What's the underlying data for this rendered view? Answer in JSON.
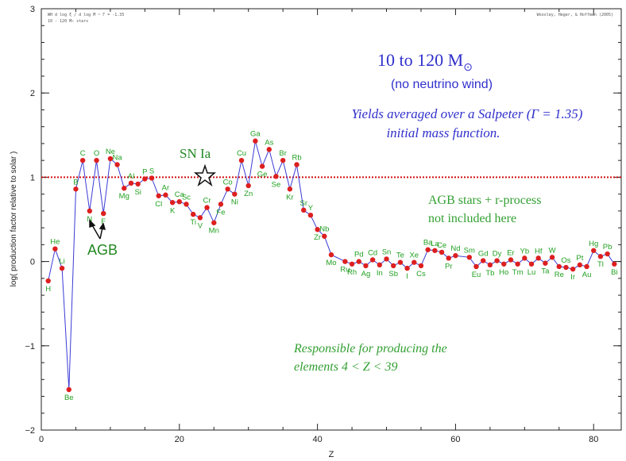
{
  "header": {
    "top_left_line1": "WH d log ξ / d log M ~ Γ = -1.35",
    "top_left_line2": "10 - 120 M☉ stars",
    "top_right": "Woosley, Heger, & Hoffman (2005)"
  },
  "annotations": {
    "mass_range": "10 to 120 M",
    "mass_range_symbol": "⊙",
    "no_wind": "(no neutrino wind)",
    "salpeter_line1": "Yields averaged over a Salpeter (Γ = 1.35)",
    "salpeter_line2": "initial mass function.",
    "agb_rproc_line1": "AGB stars + r-process",
    "agb_rproc_line2": "not included here",
    "responsible_line1": "Responsible for producing the",
    "responsible_line2": "elements 4 < Z < 39",
    "sn_ia": "SN Ia",
    "agb": "AGB"
  },
  "colors": {
    "line": "#3b3bd6",
    "marker": "#dd1f1f",
    "element_label": "#22a022",
    "reference_line": "#d01010",
    "blue_text": "#3030cc",
    "green_text": "#33a033",
    "axis": "#222222"
  },
  "chart_data": {
    "type": "line",
    "xlabel": "Z",
    "ylabel": "log( production factor relative to solar )",
    "xlim": [
      0,
      84
    ],
    "ylim": [
      -2,
      3
    ],
    "x_ticks": [
      "0",
      "20",
      "40",
      "60",
      "80"
    ],
    "y_ticks": [
      "−2",
      "−1",
      "0",
      "1",
      "2",
      "3"
    ],
    "reference_line_y": 1.0,
    "points": [
      {
        "z": 1,
        "y": -0.23,
        "label": "H",
        "pos": "below"
      },
      {
        "z": 2,
        "y": 0.15,
        "label": "He",
        "pos": "above"
      },
      {
        "z": 3,
        "y": -0.08,
        "label": "Li",
        "pos": "above"
      },
      {
        "z": 4,
        "y": -1.52,
        "label": "Be",
        "pos": "below"
      },
      {
        "z": 5,
        "y": 0.86,
        "label": "B",
        "pos": "above"
      },
      {
        "z": 6,
        "y": 1.2,
        "label": "C",
        "pos": "above"
      },
      {
        "z": 7,
        "y": 0.6,
        "label": "N",
        "pos": "below"
      },
      {
        "z": 8,
        "y": 1.2,
        "label": "O",
        "pos": "above"
      },
      {
        "z": 9,
        "y": 0.57,
        "label": "F",
        "pos": "below"
      },
      {
        "z": 10,
        "y": 1.22,
        "label": "Ne",
        "pos": "above"
      },
      {
        "z": 11,
        "y": 1.15,
        "label": "Na",
        "pos": "above"
      },
      {
        "z": 12,
        "y": 0.87,
        "label": "Mg",
        "pos": "below"
      },
      {
        "z": 13,
        "y": 0.93,
        "label": "Al",
        "pos": "above"
      },
      {
        "z": 14,
        "y": 0.92,
        "label": "Si",
        "pos": "below"
      },
      {
        "z": 15,
        "y": 0.98,
        "label": "P",
        "pos": "above"
      },
      {
        "z": 16,
        "y": 0.99,
        "label": "S",
        "pos": "above"
      },
      {
        "z": 17,
        "y": 0.78,
        "label": "Cl",
        "pos": "below"
      },
      {
        "z": 18,
        "y": 0.79,
        "label": "Ar",
        "pos": "above"
      },
      {
        "z": 19,
        "y": 0.7,
        "label": "K",
        "pos": "below"
      },
      {
        "z": 20,
        "y": 0.71,
        "label": "Ca",
        "pos": "above"
      },
      {
        "z": 21,
        "y": 0.68,
        "label": "Sc",
        "pos": "above"
      },
      {
        "z": 22,
        "y": 0.56,
        "label": "Ti",
        "pos": "below"
      },
      {
        "z": 23,
        "y": 0.52,
        "label": "V",
        "pos": "below"
      },
      {
        "z": 24,
        "y": 0.64,
        "label": "Cr",
        "pos": "above"
      },
      {
        "z": 25,
        "y": 0.46,
        "label": "Mn",
        "pos": "below"
      },
      {
        "z": 26,
        "y": 0.68,
        "label": "Fe",
        "pos": "below"
      },
      {
        "z": 27,
        "y": 0.86,
        "label": "Co",
        "pos": "above"
      },
      {
        "z": 28,
        "y": 0.8,
        "label": "Ni",
        "pos": "below"
      },
      {
        "z": 29,
        "y": 1.2,
        "label": "Cu",
        "pos": "above"
      },
      {
        "z": 30,
        "y": 0.9,
        "label": "Zn",
        "pos": "below"
      },
      {
        "z": 31,
        "y": 1.43,
        "label": "Ga",
        "pos": "above"
      },
      {
        "z": 32,
        "y": 1.13,
        "label": "Ge",
        "pos": "below"
      },
      {
        "z": 33,
        "y": 1.33,
        "label": "As",
        "pos": "above"
      },
      {
        "z": 34,
        "y": 1.01,
        "label": "Se",
        "pos": "below"
      },
      {
        "z": 35,
        "y": 1.2,
        "label": "Br",
        "pos": "above"
      },
      {
        "z": 36,
        "y": 0.86,
        "label": "Kr",
        "pos": "below"
      },
      {
        "z": 37,
        "y": 1.15,
        "label": "Rb",
        "pos": "above"
      },
      {
        "z": 38,
        "y": 0.61,
        "label": "Sr",
        "pos": "above"
      },
      {
        "z": 39,
        "y": 0.55,
        "label": "Y",
        "pos": "above"
      },
      {
        "z": 40,
        "y": 0.38,
        "label": "Zr",
        "pos": "below"
      },
      {
        "z": 41,
        "y": 0.3,
        "label": "Nb",
        "pos": "above"
      },
      {
        "z": 42,
        "y": 0.08,
        "label": "Mo",
        "pos": "below"
      },
      {
        "z": 44,
        "y": 0.0,
        "label": "Ru",
        "pos": "below"
      },
      {
        "z": 45,
        "y": -0.03,
        "label": "Rh",
        "pos": "below"
      },
      {
        "z": 46,
        "y": 0.0,
        "label": "Pd",
        "pos": "above"
      },
      {
        "z": 47,
        "y": -0.05,
        "label": "Ag",
        "pos": "below"
      },
      {
        "z": 48,
        "y": 0.02,
        "label": "Cd",
        "pos": "above"
      },
      {
        "z": 49,
        "y": -0.04,
        "label": "In",
        "pos": "below"
      },
      {
        "z": 50,
        "y": 0.03,
        "label": "Sn",
        "pos": "above"
      },
      {
        "z": 51,
        "y": -0.05,
        "label": "Sb",
        "pos": "below"
      },
      {
        "z": 52,
        "y": -0.01,
        "label": "Te",
        "pos": "above"
      },
      {
        "z": 53,
        "y": -0.08,
        "label": "I",
        "pos": "below"
      },
      {
        "z": 54,
        "y": -0.01,
        "label": "Xe",
        "pos": "above"
      },
      {
        "z": 55,
        "y": -0.05,
        "label": "Cs",
        "pos": "below"
      },
      {
        "z": 56,
        "y": 0.14,
        "label": "Ba",
        "pos": "above"
      },
      {
        "z": 57,
        "y": 0.13,
        "label": "La",
        "pos": "above"
      },
      {
        "z": 58,
        "y": 0.11,
        "label": "Ce",
        "pos": "above"
      },
      {
        "z": 59,
        "y": 0.04,
        "label": "Pr",
        "pos": "below"
      },
      {
        "z": 60,
        "y": 0.07,
        "label": "Nd",
        "pos": "above"
      },
      {
        "z": 62,
        "y": 0.05,
        "label": "Sm",
        "pos": "above"
      },
      {
        "z": 63,
        "y": -0.06,
        "label": "Eu",
        "pos": "below"
      },
      {
        "z": 64,
        "y": 0.01,
        "label": "Gd",
        "pos": "above"
      },
      {
        "z": 65,
        "y": -0.04,
        "label": "Tb",
        "pos": "below"
      },
      {
        "z": 66,
        "y": 0.01,
        "label": "Dy",
        "pos": "above"
      },
      {
        "z": 67,
        "y": -0.03,
        "label": "Ho",
        "pos": "below"
      },
      {
        "z": 68,
        "y": 0.02,
        "label": "Er",
        "pos": "above"
      },
      {
        "z": 69,
        "y": -0.03,
        "label": "Tm",
        "pos": "below"
      },
      {
        "z": 70,
        "y": 0.04,
        "label": "Yb",
        "pos": "above"
      },
      {
        "z": 71,
        "y": -0.03,
        "label": "Lu",
        "pos": "below"
      },
      {
        "z": 72,
        "y": 0.04,
        "label": "Hf",
        "pos": "above"
      },
      {
        "z": 73,
        "y": -0.02,
        "label": "Ta",
        "pos": "below"
      },
      {
        "z": 74,
        "y": 0.05,
        "label": "W",
        "pos": "above"
      },
      {
        "z": 75,
        "y": -0.06,
        "label": "Re",
        "pos": "below"
      },
      {
        "z": 76,
        "y": -0.07,
        "label": "Os",
        "pos": "above"
      },
      {
        "z": 77,
        "y": -0.09,
        "label": "Ir",
        "pos": "below"
      },
      {
        "z": 78,
        "y": -0.04,
        "label": "Pt",
        "pos": "above"
      },
      {
        "z": 79,
        "y": -0.06,
        "label": "Au",
        "pos": "below"
      },
      {
        "z": 80,
        "y": 0.13,
        "label": "Hg",
        "pos": "above"
      },
      {
        "z": 81,
        "y": 0.06,
        "label": "Tl",
        "pos": "below"
      },
      {
        "z": 82,
        "y": 0.09,
        "label": "Pb",
        "pos": "above"
      },
      {
        "z": 83,
        "y": -0.03,
        "label": "Bi",
        "pos": "below"
      }
    ]
  }
}
